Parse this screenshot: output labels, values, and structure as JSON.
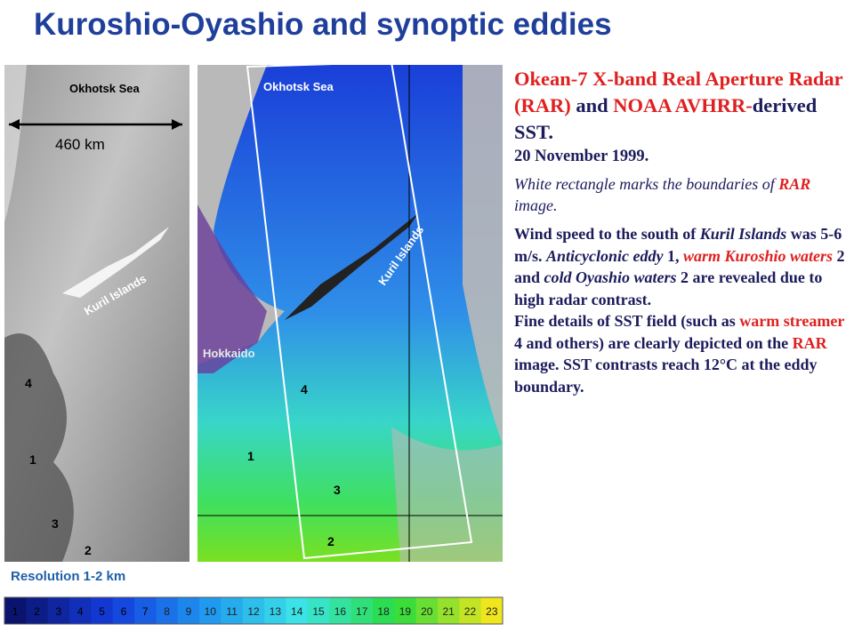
{
  "title": "Kuroshio-Oyashio and synoptic eddies",
  "left_image": {
    "sea": "Okhotsk Sea",
    "scale": "460 km",
    "islands": "Kuril Islands",
    "eddies": [
      "4",
      "1",
      "3",
      "2"
    ],
    "caption": "Resolution 1-2 km"
  },
  "right_image": {
    "sea": "Okhotsk Sea",
    "islands": "Kuril Islands",
    "island": "Hokkaido",
    "eddies": [
      "4",
      "1",
      "3",
      "2"
    ]
  },
  "colorbar": [
    1,
    2,
    3,
    4,
    5,
    6,
    7,
    8,
    9,
    10,
    11,
    12,
    13,
    14,
    15,
    16,
    17,
    18,
    19,
    20,
    21,
    22,
    23
  ],
  "description": {
    "heading": [
      "Okean-7  X-band Real Aperture Radar (RAR)",
      " and ",
      "NOAA AVHRR-",
      "derived SST."
    ],
    "date": "20 November 1999.",
    "note": [
      "White rectangle marks the boundaries of ",
      "RAR",
      " image."
    ],
    "paragraph1": [
      "Wind speed to the south of ",
      "Kuril Islands",
      " was 5-6 m/s. ",
      "Anticyclonic eddy",
      " 1, ",
      "warm Kuroshio waters",
      " 2 and ",
      "cold Oyashio waters",
      " 2 are revealed due to high radar contrast."
    ],
    "paragraph2": [
      "Fine details of SST field (such as ",
      "warm streamer",
      " 4 and others) are clearly depicted on the ",
      "RAR",
      " image. SST contrasts reach 12°C at the eddy boundary."
    ]
  }
}
